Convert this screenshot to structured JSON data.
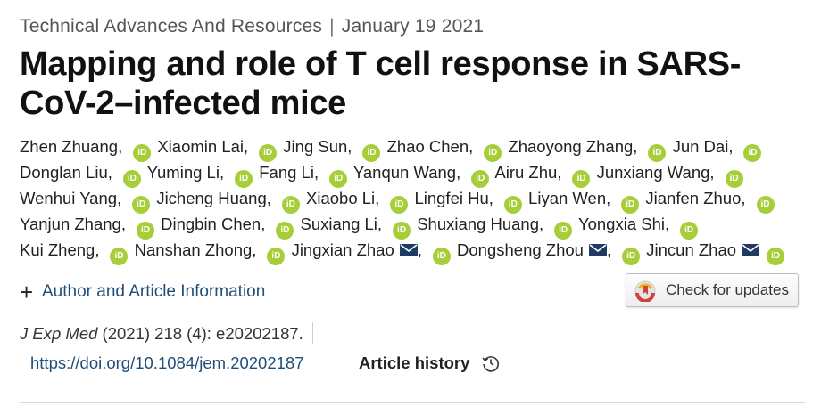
{
  "header": {
    "category": "Technical Advances And Resources",
    "separator": "|",
    "date": "January 19 2021"
  },
  "title": "Mapping and role of T cell response in SARS-CoV-2–infected mice",
  "orcid_badge": "iD",
  "authors": [
    {
      "name": "Zhen Zhuang",
      "email": false
    },
    {
      "name": "Xiaomin Lai",
      "email": false
    },
    {
      "name": "Jing Sun",
      "email": false
    },
    {
      "name": "Zhao Chen",
      "email": false
    },
    {
      "name": "Zhaoyong Zhang",
      "email": false
    },
    {
      "name": "Jun Dai",
      "email": false
    },
    {
      "name": "Donglan Liu",
      "email": false
    },
    {
      "name": "Yuming Li",
      "email": false
    },
    {
      "name": "Fang Li",
      "email": false
    },
    {
      "name": "Yanqun Wang",
      "email": false
    },
    {
      "name": "Airu Zhu",
      "email": false
    },
    {
      "name": "Junxiang Wang",
      "email": false
    },
    {
      "name": "Wenhui Yang",
      "email": false
    },
    {
      "name": "Jicheng Huang",
      "email": false
    },
    {
      "name": "Xiaobo Li",
      "email": false
    },
    {
      "name": "Lingfei Hu",
      "email": false
    },
    {
      "name": "Liyan Wen",
      "email": false
    },
    {
      "name": "Jianfen Zhuo",
      "email": false
    },
    {
      "name": "Yanjun Zhang",
      "email": false
    },
    {
      "name": "Dingbin Chen",
      "email": false
    },
    {
      "name": "Suxiang Li",
      "email": false
    },
    {
      "name": "Shuxiang Huang",
      "email": false
    },
    {
      "name": "Yongxia Shi",
      "email": false
    },
    {
      "name": "Kui Zheng",
      "email": false
    },
    {
      "name": "Nanshan Zhong",
      "email": false
    },
    {
      "name": "Jingxian Zhao",
      "email": true
    },
    {
      "name": "Dongsheng Zhou",
      "email": true
    },
    {
      "name": "Jincun Zhao",
      "email": true
    }
  ],
  "author_info_label": "Author and Article Information",
  "check_updates_label": "Check for updates",
  "citation": {
    "journal": "J Exp Med",
    "details": "(2021) 218 (4): e20202187."
  },
  "doi": "https://doi.org/10.1084/jem.20202187",
  "article_history_label": "Article history",
  "colors": {
    "orcid": "#a6ce39",
    "link": "#1f4e79",
    "mail": "#1f3b63"
  }
}
